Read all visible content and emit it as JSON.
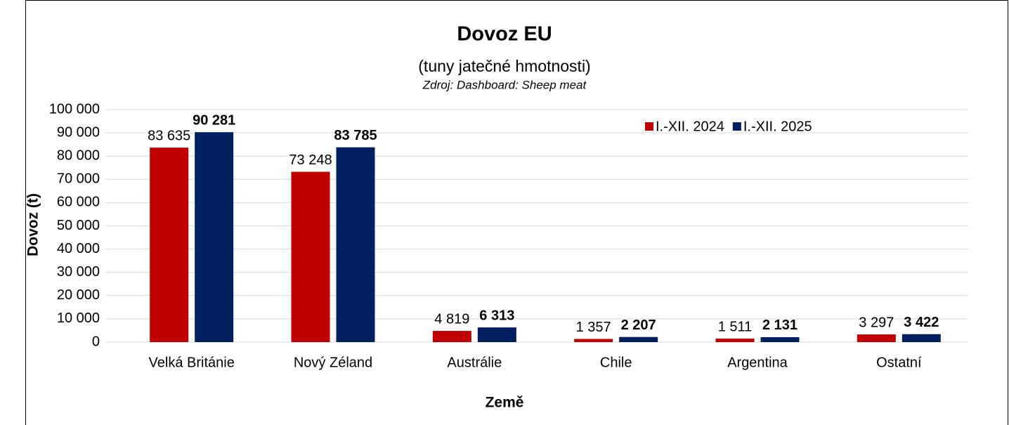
{
  "chart_data": {
    "type": "bar",
    "title": "Dovoz EU",
    "subtitle": "(tuny jatečné hmotnosti)",
    "source": "Zdroj: Dashboard: Sheep meat",
    "y_label": "Dovoz (t)",
    "x_label": "Země",
    "categories": [
      "Velká Británie",
      "Nový Zéland",
      "Austrálie",
      "Chile",
      "Argentina",
      "Ostatní"
    ],
    "series": [
      {
        "name": "I.-XII. 2024",
        "color": "#c00000",
        "values": [
          83635,
          73248,
          4819,
          1357,
          1511,
          3297
        ],
        "value_labels": [
          "83 635",
          "73 248",
          "4 819",
          "1 357",
          "1 511",
          "3 297"
        ]
      },
      {
        "name": "I.-XII. 2025",
        "color": "#002060",
        "values": [
          90281,
          83785,
          6313,
          2207,
          2131,
          3422
        ],
        "value_labels": [
          "90 281",
          "83 785",
          "6 313",
          "2 207",
          "2 131",
          "3 422"
        ]
      }
    ],
    "ylim": [
      0,
      100000
    ],
    "yticks": [
      0,
      {
        "value": 10000,
        "label": "10 000"
      },
      {
        "value": 20000,
        "label": "20 000"
      },
      {
        "value": 30000,
        "label": "30 000"
      },
      {
        "value": 40000,
        "label": "40 000"
      },
      {
        "value": 50000,
        "label": "50 000"
      },
      {
        "value": 60000,
        "label": "60 000"
      },
      {
        "value": 70000,
        "label": "70 000"
      },
      {
        "value": 80000,
        "label": "80 000"
      },
      {
        "value": 90000,
        "label": "90 000"
      },
      {
        "value": 100000,
        "label": "100 000"
      }
    ],
    "grid": true
  }
}
